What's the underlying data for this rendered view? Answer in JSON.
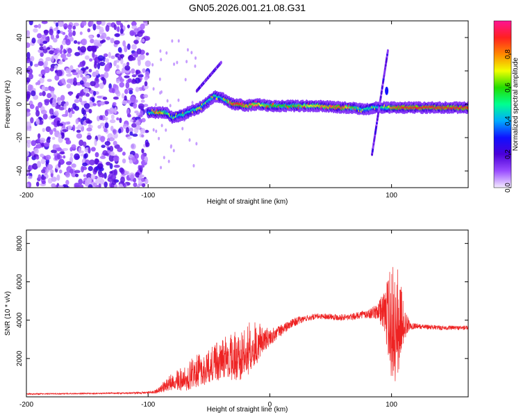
{
  "title": "GN05.2026.001.21.08.G31",
  "chart_data": [
    {
      "type": "heatmap",
      "title": "GN05.2026.001.21.08.G31",
      "xlabel": "Height of straight line (km)",
      "ylabel": "Frequency (Hz)",
      "xlim": [
        -200,
        163
      ],
      "ylim": [
        -50,
        50
      ],
      "xticks": [
        -200,
        -100,
        0,
        100
      ],
      "xtick_labels": [
        "-200",
        "-100",
        "",
        "100"
      ],
      "yticks": [
        -40,
        -20,
        0,
        20,
        40
      ],
      "ytick_labels": [
        "-40",
        "-20",
        "0",
        "20",
        "40"
      ],
      "colorbar": {
        "label": "Normalized spectral amplitude",
        "range": [
          0,
          1
        ],
        "ticks": [
          0,
          0.2,
          0.4,
          0.6,
          0.8
        ],
        "tick_labels": [
          "0.0",
          "0.2",
          "0.4",
          "0.6",
          "0.8"
        ],
        "colors": [
          "#f4ecff",
          "#9a4dff",
          "#4b00d8",
          "#1010ff",
          "#00aaff",
          "#00ff90",
          "#22dd00",
          "#f0ff00",
          "#ff8800",
          "#ff2020",
          "#ff1493"
        ]
      },
      "noise_region_x": [
        -200,
        -100
      ],
      "ridge": {
        "x": [
          -100,
          -95,
          -90,
          -85,
          -80,
          -75,
          -70,
          -65,
          -60,
          -55,
          -50,
          -45,
          -40,
          -35,
          -30,
          -25,
          -20,
          -10,
          0,
          20,
          40,
          60,
          70,
          75,
          80,
          85,
          88,
          92,
          95,
          100,
          110,
          130,
          150,
          163
        ],
        "y": [
          -5,
          -5,
          -5,
          -5,
          -8,
          -7,
          -6,
          -4,
          -3,
          -1,
          2,
          5,
          4,
          2,
          0,
          0,
          -1,
          0,
          -1,
          -1,
          -1,
          -2,
          -2,
          -3,
          -3,
          -2,
          -2,
          -2,
          -2,
          -2,
          -2,
          -2,
          -2,
          -2
        ],
        "amplitude": [
          0.35,
          0.55,
          0.85,
          0.55,
          0.4,
          0.45,
          0.5,
          0.45,
          0.5,
          0.45,
          0.5,
          0.5,
          0.45,
          0.55,
          0.9,
          0.9,
          0.8,
          0.75,
          0.6,
          0.6,
          0.75,
          0.85,
          0.55,
          0.45,
          0.5,
          0.5,
          0.45,
          0.55,
          0.45,
          0.8,
          0.9,
          0.9,
          0.9,
          0.9
        ]
      },
      "features": [
        {
          "name": "streak-near-100km",
          "x": [
            84,
            97
          ],
          "y": [
            -30,
            32
          ]
        },
        {
          "name": "branch-near-minus50km",
          "x": [
            -60,
            -40
          ],
          "y": [
            8,
            25
          ]
        }
      ]
    },
    {
      "type": "line",
      "title": "",
      "xlabel": "Height of straight line (km)",
      "ylabel": "SNR (10 * v/v)",
      "xlim": [
        -200,
        163
      ],
      "ylim": [
        0,
        8700
      ],
      "xticks": [
        -200,
        -100,
        0,
        100
      ],
      "xtick_labels": [
        "-200",
        "-100",
        "0",
        "100"
      ],
      "yticks": [
        2000,
        4000,
        6000,
        8000
      ],
      "ytick_labels": [
        "2000",
        "4000",
        "6000",
        "8000"
      ],
      "color": "#ee2222",
      "x": [
        -200,
        -180,
        -160,
        -140,
        -120,
        -100,
        -95,
        -90,
        -85,
        -80,
        -75,
        -70,
        -65,
        -60,
        -55,
        -50,
        -45,
        -40,
        -35,
        -30,
        -25,
        -20,
        -15,
        -10,
        -5,
        0,
        5,
        10,
        15,
        20,
        25,
        30,
        35,
        40,
        45,
        50,
        55,
        60,
        65,
        70,
        75,
        80,
        85,
        90,
        95,
        100,
        105,
        110,
        115,
        120,
        125,
        130,
        140,
        150,
        163
      ],
      "y": [
        150,
        160,
        170,
        180,
        190,
        220,
        250,
        400,
        600,
        800,
        900,
        1000,
        1200,
        1400,
        1500,
        1700,
        1800,
        2000,
        2100,
        2200,
        2300,
        2500,
        2700,
        2900,
        3000,
        3100,
        3300,
        3500,
        3700,
        3900,
        4000,
        4100,
        4150,
        4200,
        4200,
        4200,
        4150,
        4150,
        4150,
        4200,
        4300,
        4300,
        4400,
        4500,
        4500,
        4200,
        4100,
        3900,
        3700,
        3700,
        3650,
        3650,
        3600,
        3600,
        3600
      ],
      "noise_amplitude": [
        30,
        30,
        30,
        30,
        40,
        60,
        80,
        180,
        350,
        450,
        550,
        650,
        750,
        800,
        850,
        900,
        950,
        1000,
        1100,
        1200,
        1300,
        1350,
        1250,
        1000,
        700,
        450,
        350,
        300,
        250,
        220,
        200,
        160,
        150,
        150,
        150,
        160,
        170,
        170,
        170,
        180,
        200,
        250,
        300,
        500,
        1400,
        3200,
        3000,
        900,
        200,
        150,
        120,
        120,
        120,
        120,
        120
      ]
    }
  ]
}
